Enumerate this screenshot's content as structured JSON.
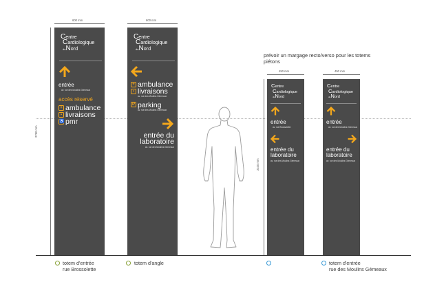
{
  "note": "prévoir un margage recto/verso pour les totems piétons",
  "dimensions": {
    "width_large": "600 mm",
    "width_small": "450 mm",
    "height_large": "2780 mm",
    "height_small": "2100 mm"
  },
  "brand": {
    "line1_cap": "C",
    "line1_rest": "entre",
    "line2_cap": "C",
    "line2_rest": "ardiologique",
    "line3_small": "du",
    "line3_cap": "N",
    "line3_rest": "ord"
  },
  "address": "av. rue des Moulins Gémeaux",
  "totem1": {
    "entree": "entrée",
    "acces": "accès réservé",
    "items": [
      "ambulance",
      "livraisons",
      "pmr"
    ]
  },
  "totem2": {
    "items": [
      "ambulance",
      "livraisons"
    ],
    "parking": "parking",
    "labo_line1": "entrée du",
    "labo_line2": "laboratoire"
  },
  "totem3": {
    "entree": "entrée",
    "entree_sub": "av. rue Brossolette",
    "labo_line1": "entrée du",
    "labo_line2": "laboratoire"
  },
  "totem4": {
    "entree": "entrée",
    "entree_sub": "av. rue des Moulins Gémeaux",
    "labo_line1": "entrée du",
    "labo_line2": "laboratoire"
  },
  "captions": {
    "c1_line1": "totem d'entrée",
    "c1_line2": "rue Brossolette",
    "c2_line1": "totem d'angle",
    "c4_line1": "totem d'entrée",
    "c4_line2": "rue des Moulins Gémeaux"
  },
  "colors": {
    "panel": "#4a4a4a",
    "accent": "#f3a71c",
    "badge_green": "#8aa33a",
    "badge_blue": "#3a9ad6"
  },
  "icons": [
    "arrow-up-icon",
    "arrow-left-icon",
    "arrow-right-icon",
    "ambulance-icon",
    "truck-icon",
    "parking-icon",
    "wheelchair-icon",
    "person-silhouette"
  ]
}
